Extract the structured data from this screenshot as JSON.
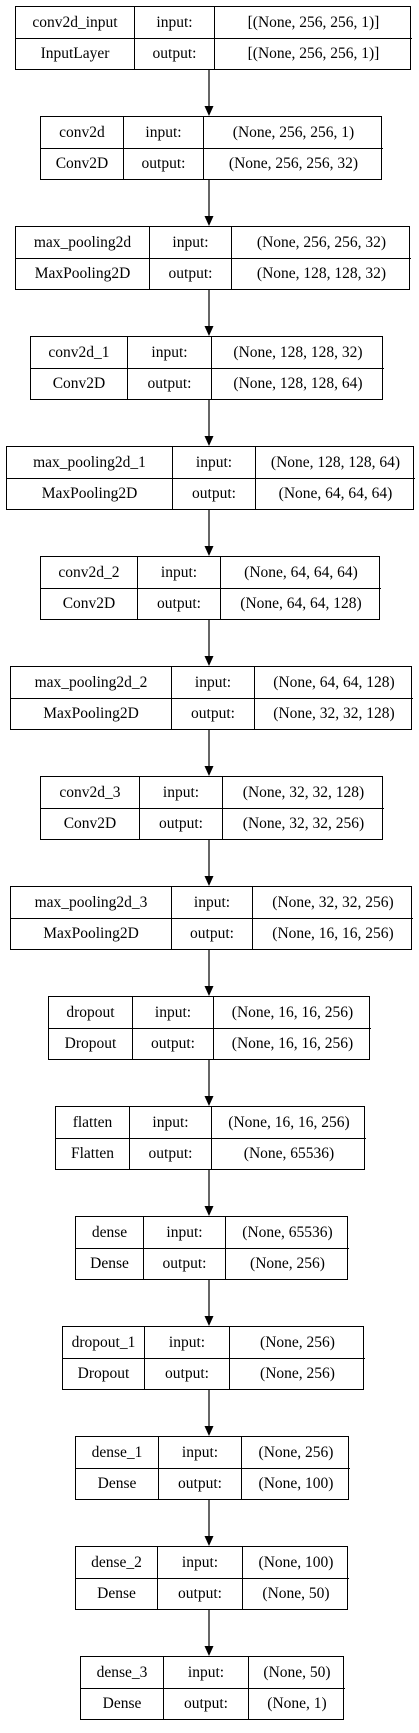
{
  "labels": {
    "input": "input:",
    "output": "output:"
  },
  "layers": [
    {
      "name": "conv2d_input",
      "type": "InputLayer",
      "input": "[(None, 256, 256, 1)]",
      "output": "[(None, 256, 256, 1)]"
    },
    {
      "name": "conv2d",
      "type": "Conv2D",
      "input": "(None, 256, 256, 1)",
      "output": "(None, 256, 256, 32)"
    },
    {
      "name": "max_pooling2d",
      "type": "MaxPooling2D",
      "input": "(None, 256, 256, 32)",
      "output": "(None, 128, 128, 32)"
    },
    {
      "name": "conv2d_1",
      "type": "Conv2D",
      "input": "(None, 128, 128, 32)",
      "output": "(None, 128, 128, 64)"
    },
    {
      "name": "max_pooling2d_1",
      "type": "MaxPooling2D",
      "input": "(None, 128, 128, 64)",
      "output": "(None, 64, 64, 64)"
    },
    {
      "name": "conv2d_2",
      "type": "Conv2D",
      "input": "(None, 64, 64, 64)",
      "output": "(None, 64, 64, 128)"
    },
    {
      "name": "max_pooling2d_2",
      "type": "MaxPooling2D",
      "input": "(None, 64, 64, 128)",
      "output": "(None, 32, 32, 128)"
    },
    {
      "name": "conv2d_3",
      "type": "Conv2D",
      "input": "(None, 32, 32, 128)",
      "output": "(None, 32, 32, 256)"
    },
    {
      "name": "max_pooling2d_3",
      "type": "MaxPooling2D",
      "input": "(None, 32, 32, 256)",
      "output": "(None, 16, 16, 256)"
    },
    {
      "name": "dropout",
      "type": "Dropout",
      "input": "(None, 16, 16, 256)",
      "output": "(None, 16, 16, 256)"
    },
    {
      "name": "flatten",
      "type": "Flatten",
      "input": "(None, 16, 16, 256)",
      "output": "(None, 65536)"
    },
    {
      "name": "dense",
      "type": "Dense",
      "input": "(None, 65536)",
      "output": "(None, 256)"
    },
    {
      "name": "dropout_1",
      "type": "Dropout",
      "input": "(None, 256)",
      "output": "(None, 256)"
    },
    {
      "name": "dense_1",
      "type": "Dense",
      "input": "(None, 256)",
      "output": "(None, 100)"
    },
    {
      "name": "dense_2",
      "type": "Dense",
      "input": "(None, 100)",
      "output": "(None, 50)"
    },
    {
      "name": "dense_3",
      "type": "Dense",
      "input": "(None, 50)",
      "output": "(None, 1)"
    }
  ]
}
